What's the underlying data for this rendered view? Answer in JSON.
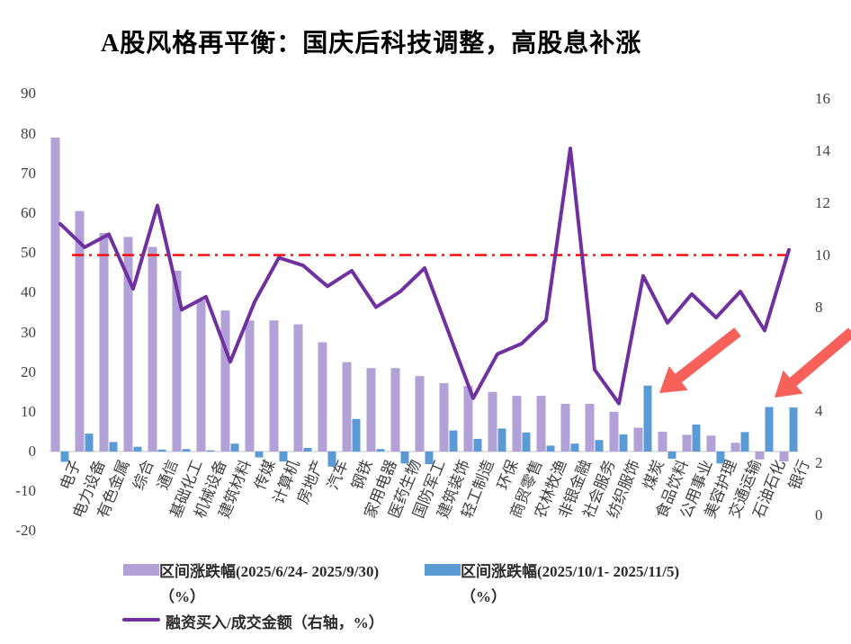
{
  "title": "A股风格再平衡：国庆后科技调整，高股息补涨",
  "legend": {
    "series1_label": "区间涨跌幅(2025/6/24- 2025/9/30)",
    "series1_unit": "（%）",
    "series2_label": "区间涨跌幅(2025/10/1- 2025/11/5)",
    "series2_unit": "（%）",
    "series3_label": "融资买入/成交金额（右轴，%）"
  },
  "colors": {
    "bar_period1": "#B2A1D6",
    "bar_period2": "#5B9BD5",
    "line_financing": "#7030A0",
    "reference_line": "#FF0000",
    "arrow": "#F8605A",
    "axis_text": "#404040",
    "zero_line": "#D9D9D9"
  },
  "chart_data": {
    "type": "bar",
    "subtype": "grouped bars with overlaid line on secondary axis",
    "categories": [
      "电子",
      "电力设备",
      "有色金属",
      "综合",
      "通信",
      "基础化工",
      "机械设备",
      "建筑材料",
      "传媒",
      "计算机",
      "房地产",
      "汽车",
      "钢铁",
      "家用电器",
      "医药生物",
      "国防军工",
      "建筑装饰",
      "轻工制造",
      "环保",
      "商贸零售",
      "农林牧渔",
      "非银金融",
      "社会服务",
      "纺织服饰",
      "煤炭",
      "食品饮料",
      "公用事业",
      "美容护理",
      "交通运输",
      "石油石化",
      "银行"
    ],
    "series": [
      {
        "name": "区间涨跌幅(2025/6/24- 2025/9/30)（%）",
        "type": "bar",
        "axis": "left",
        "color": "#B2A1D6",
        "values": [
          79,
          60.5,
          55,
          54,
          51.5,
          45.5,
          38,
          35.5,
          33,
          33,
          32,
          27.5,
          22.5,
          21,
          21,
          19,
          17.2,
          16.5,
          15,
          14,
          14,
          12,
          12,
          10,
          6,
          5,
          4.2,
          4,
          2.2,
          -2,
          -2.5
        ]
      },
      {
        "name": "区间涨跌幅(2025/10/1- 2025/11/5)（%）",
        "type": "bar",
        "axis": "left",
        "color": "#5B9BD5",
        "values": [
          -2.6,
          4.5,
          2.4,
          1.2,
          0.5,
          0.6,
          0.3,
          2,
          -1.5,
          -2.5,
          0.9,
          -3.8,
          8.2,
          0.6,
          -3,
          -3.2,
          5.3,
          3.2,
          5.8,
          4.8,
          1.5,
          2,
          2.9,
          4.3,
          16.6,
          -1.8,
          6.8,
          -3,
          4.9,
          11.2,
          11.1
        ]
      },
      {
        "name": "融资买入/成交金额（右轴，%）",
        "type": "line",
        "axis": "right",
        "color": "#7030A0",
        "values": [
          11.2,
          10.3,
          10.8,
          8.7,
          11.9,
          7.9,
          8.4,
          5.9,
          8.2,
          9.9,
          9.6,
          8.8,
          9.4,
          8,
          8.6,
          9.5,
          7,
          4.5,
          6.2,
          6.6,
          7.5,
          14.1,
          5.6,
          4.3,
          9.2,
          7.4,
          8.5,
          7.6,
          8.6,
          7.1,
          10.2
        ]
      }
    ],
    "left_axis": {
      "min": -20,
      "max": 90,
      "step": 10,
      "ticks": [
        90,
        80,
        70,
        60,
        50,
        40,
        30,
        20,
        10,
        0,
        -10,
        -20
      ]
    },
    "right_axis": {
      "min": 0,
      "max": 16,
      "step": 2,
      "ticks": [
        16,
        14,
        12,
        10,
        8,
        6,
        4,
        2,
        0
      ]
    },
    "reference_line": {
      "axis": "right",
      "value": 10,
      "color": "#FF0000",
      "style": "dash-dot"
    },
    "grid": "off",
    "legend_position": "bottom-left",
    "annotations": {
      "color": "#F8605A",
      "arrows": [
        {
          "description": "red arrow pointing at 煤炭 Oct rally bar",
          "tail": [
            820,
            369
          ],
          "tip": [
            733,
            437
          ]
        },
        {
          "description": "red arrow pointing at 银行 Oct rally bar",
          "tail": [
            947,
            369
          ],
          "tip": [
            861,
            442
          ]
        }
      ]
    }
  }
}
